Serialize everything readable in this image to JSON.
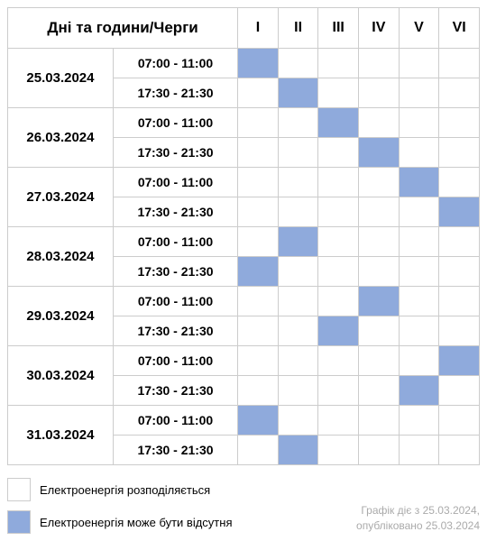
{
  "table": {
    "main_header": "Дні та години/Черги",
    "queues": [
      "I",
      "II",
      "III",
      "IV",
      "V",
      "VI"
    ],
    "fill_color": "#8faadc",
    "border_color": "#cccccc",
    "background_color": "#ffffff",
    "days": [
      {
        "date": "25.03.2024",
        "slots": [
          {
            "time": "07:00  - 11:00",
            "outage": [
              1,
              0,
              0,
              0,
              0,
              0
            ]
          },
          {
            "time": "17:30  - 21:30",
            "outage": [
              0,
              1,
              0,
              0,
              0,
              0
            ]
          }
        ]
      },
      {
        "date": "26.03.2024",
        "slots": [
          {
            "time": "07:00  - 11:00",
            "outage": [
              0,
              0,
              1,
              0,
              0,
              0
            ]
          },
          {
            "time": "17:30  - 21:30",
            "outage": [
              0,
              0,
              0,
              1,
              0,
              0
            ]
          }
        ]
      },
      {
        "date": "27.03.2024",
        "slots": [
          {
            "time": "07:00  - 11:00",
            "outage": [
              0,
              0,
              0,
              0,
              1,
              0
            ]
          },
          {
            "time": "17:30  - 21:30",
            "outage": [
              0,
              0,
              0,
              0,
              0,
              1
            ]
          }
        ]
      },
      {
        "date": "28.03.2024",
        "slots": [
          {
            "time": "07:00  - 11:00",
            "outage": [
              0,
              1,
              0,
              0,
              0,
              0
            ]
          },
          {
            "time": "17:30  - 21:30",
            "outage": [
              1,
              0,
              0,
              0,
              0,
              0
            ]
          }
        ]
      },
      {
        "date": "29.03.2024",
        "slots": [
          {
            "time": "07:00  - 11:00",
            "outage": [
              0,
              0,
              0,
              1,
              0,
              0
            ]
          },
          {
            "time": "17:30  - 21:30",
            "outage": [
              0,
              0,
              1,
              0,
              0,
              0
            ]
          }
        ]
      },
      {
        "date": "30.03.2024",
        "slots": [
          {
            "time": "07:00  - 11:00",
            "outage": [
              0,
              0,
              0,
              0,
              0,
              1
            ]
          },
          {
            "time": "17:30  - 21:30",
            "outage": [
              0,
              0,
              0,
              0,
              1,
              0
            ]
          }
        ]
      },
      {
        "date": "31.03.2024",
        "slots": [
          {
            "time": "07:00  - 11:00",
            "outage": [
              1,
              0,
              0,
              0,
              0,
              0
            ]
          },
          {
            "time": "17:30  - 21:30",
            "outage": [
              0,
              1,
              0,
              0,
              0,
              0
            ]
          }
        ]
      }
    ]
  },
  "legend": {
    "available": "Електроенергія розподіляється",
    "outage": "Електроенергія може бути відсутня"
  },
  "footer": {
    "line1": "Графік діє з 25.03.2024,",
    "line2": "опубліковано 25.03.2024"
  }
}
